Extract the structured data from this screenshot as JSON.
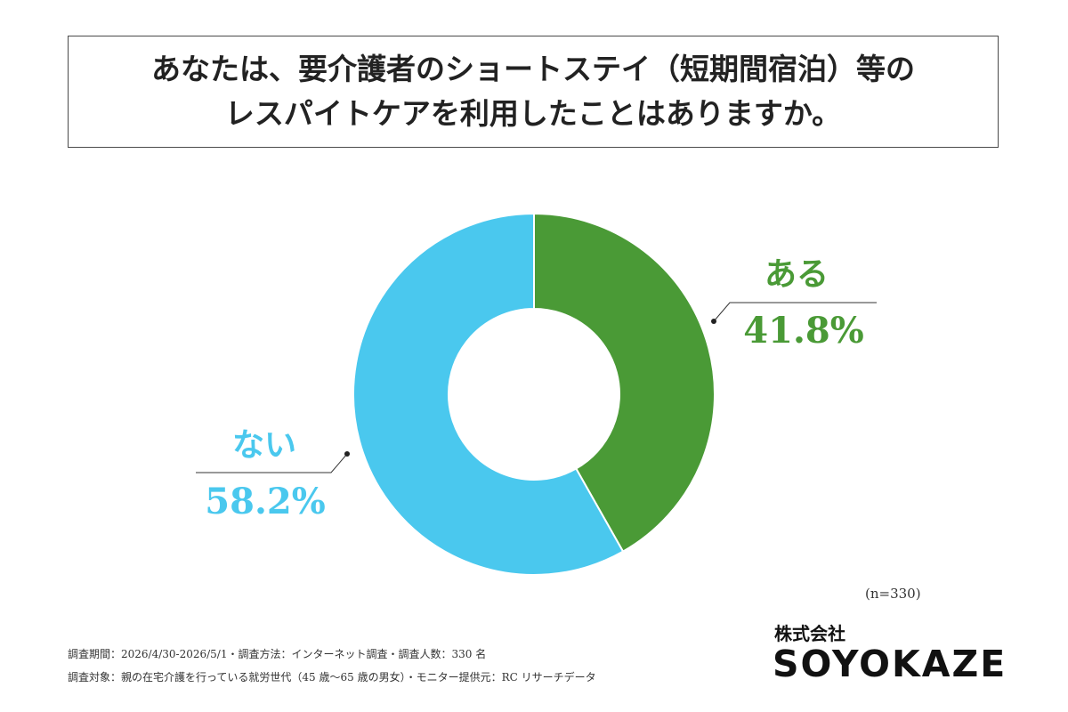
{
  "title": {
    "line1": "あなたは、要介護者のショートステイ（短期間宿泊）等の",
    "line2": "レスパイトケアを利用したことはありますか。"
  },
  "chart_data": {
    "type": "pie",
    "categories": [
      "ある",
      "ない"
    ],
    "values": [
      41.8,
      58.2
    ],
    "value_labels": [
      "41.8%",
      "58.2%"
    ],
    "colors": [
      "#4a9a36",
      "#4ac8ee"
    ],
    "donut": true,
    "n_label": "(n=330)"
  },
  "footnotes": {
    "line1": "調査期間：2026/4/30-2026/5/1・調査方法：インターネット調査・調査人数：330 名",
    "line2": "調査対象：親の在宅介護を行っている就労世代（45 歳〜65 歳の男女）・モニター提供元：RC リサーチデータ"
  },
  "company": {
    "prefix": "株式会社",
    "name": "SOYOKAZE"
  }
}
